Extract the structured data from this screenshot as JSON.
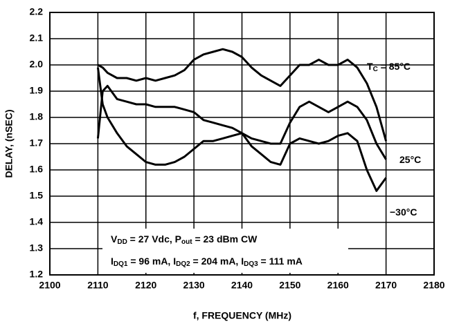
{
  "chart_data": {
    "type": "line",
    "xlabel": "f, FREQUENCY (MHz)",
    "ylabel": "DELAY, (nSEC)",
    "x": [
      2110,
      2111,
      2112,
      2114,
      2116,
      2118,
      2120,
      2122,
      2124,
      2126,
      2128,
      2130,
      2132,
      2134,
      2136,
      2138,
      2140,
      2142,
      2144,
      2146,
      2148,
      2150,
      2152,
      2154,
      2156,
      2158,
      2160,
      2162,
      2164,
      2166,
      2168,
      2170
    ],
    "series": [
      {
        "name": [
          {
            "text": "T"
          },
          {
            "text": "C",
            "sub": true
          },
          {
            "text": " = 85°C"
          }
        ],
        "color": "#000000",
        "values": [
          2.0,
          1.99,
          1.97,
          1.95,
          1.95,
          1.94,
          1.95,
          1.94,
          1.95,
          1.96,
          1.98,
          2.02,
          2.04,
          2.05,
          2.06,
          2.05,
          2.03,
          1.99,
          1.96,
          1.94,
          1.92,
          1.96,
          2.0,
          2.0,
          2.02,
          2.0,
          2.0,
          2.02,
          1.99,
          1.93,
          1.84,
          1.71
        ]
      },
      {
        "name": [
          {
            "text": "25°C"
          }
        ],
        "color": "#000000",
        "values": [
          1.72,
          1.9,
          1.92,
          1.87,
          1.86,
          1.85,
          1.85,
          1.84,
          1.84,
          1.84,
          1.83,
          1.82,
          1.79,
          1.78,
          1.77,
          1.76,
          1.74,
          1.72,
          1.71,
          1.7,
          1.7,
          1.78,
          1.84,
          1.86,
          1.84,
          1.82,
          1.84,
          1.86,
          1.84,
          1.79,
          1.7,
          1.64
        ]
      },
      {
        "name": [
          {
            "text": "−30°C"
          }
        ],
        "color": "#000000",
        "values": [
          1.99,
          1.85,
          1.8,
          1.74,
          1.69,
          1.66,
          1.63,
          1.62,
          1.62,
          1.63,
          1.65,
          1.68,
          1.71,
          1.71,
          1.72,
          1.73,
          1.74,
          1.69,
          1.66,
          1.63,
          1.62,
          1.7,
          1.72,
          1.71,
          1.7,
          1.71,
          1.73,
          1.74,
          1.71,
          1.6,
          1.52,
          1.57
        ]
      }
    ],
    "annotations": [
      [
        {
          "text": "V"
        },
        {
          "text": "DD",
          "sub": true
        },
        {
          "text": " = 27 Vdc, P"
        },
        {
          "text": "out",
          "sub": true
        },
        {
          "text": " = 23 dBm CW"
        }
      ],
      [
        {
          "text": "I"
        },
        {
          "text": "DQ1",
          "sub": true
        },
        {
          "text": " = 96 mA, I"
        },
        {
          "text": "DQ2",
          "sub": true
        },
        {
          "text": " = 204 mA, I"
        },
        {
          "text": "DQ3",
          "sub": true
        },
        {
          "text": " = 111 mA"
        }
      ]
    ],
    "xlim": [
      2100,
      2180
    ],
    "xticks": [
      2100,
      2110,
      2120,
      2130,
      2140,
      2150,
      2160,
      2170,
      2180
    ],
    "ylim": [
      1.2,
      2.2
    ],
    "yticks": [
      1.2,
      1.3,
      1.4,
      1.5,
      1.6,
      1.7,
      1.8,
      1.9,
      {
        "value": 2,
        "label": "2.0"
      },
      2.1,
      2.2
    ],
    "grid": true
  }
}
